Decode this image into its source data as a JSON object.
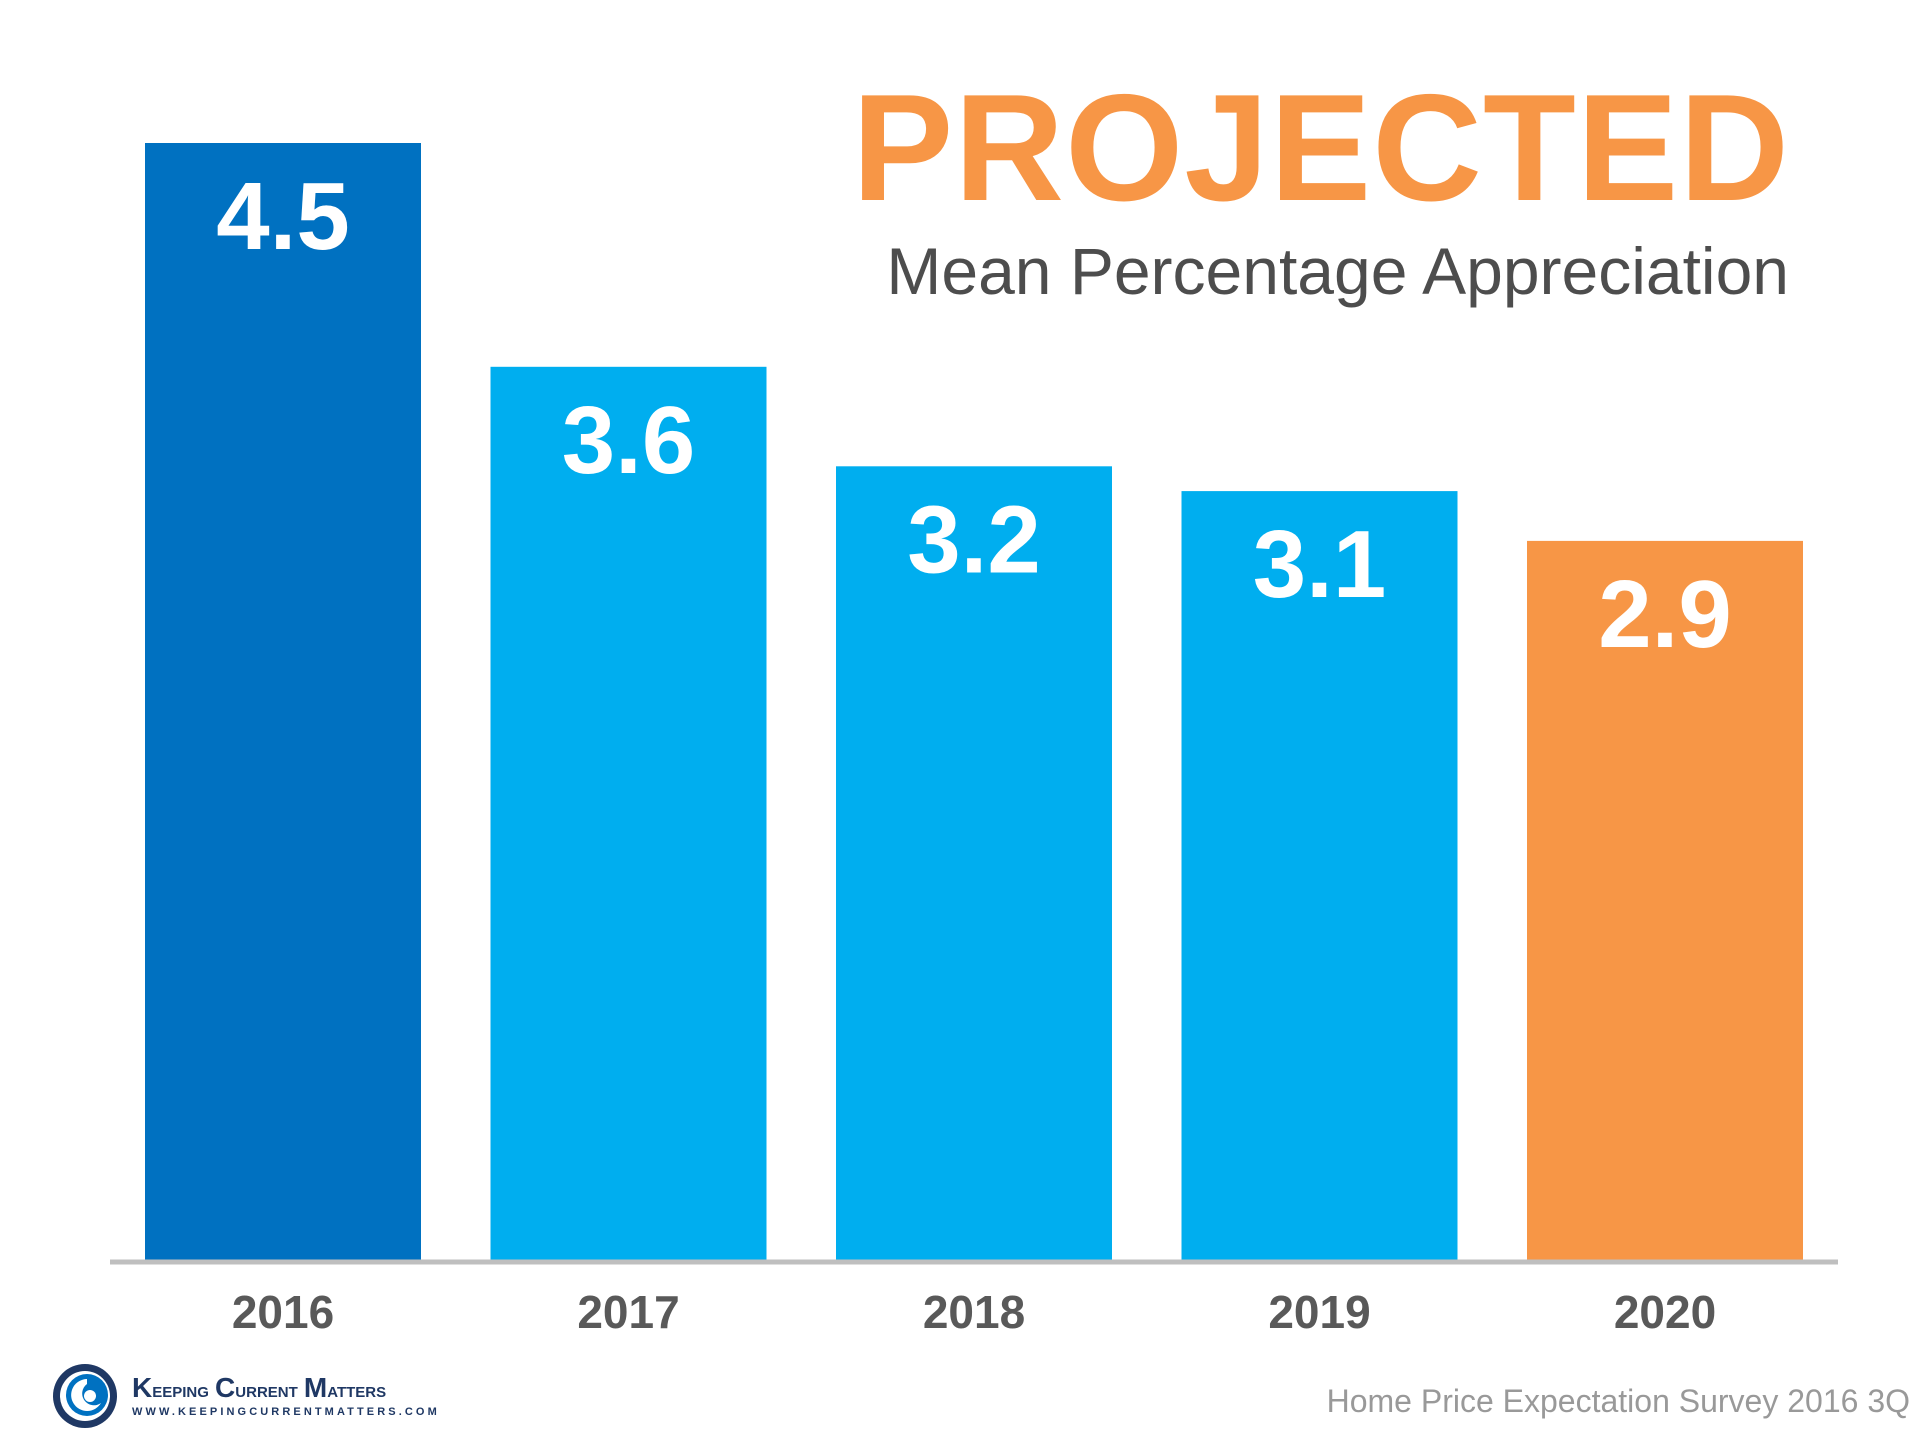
{
  "chart_data": {
    "type": "bar",
    "title": "PROJECTED",
    "subtitle": "Mean Percentage Appreciation",
    "categories": [
      "2016",
      "2017",
      "2018",
      "2019",
      "2020"
    ],
    "values": [
      4.5,
      3.6,
      3.2,
      3.1,
      2.9
    ],
    "value_labels": [
      "4.5",
      "3.6",
      "3.2",
      "3.1",
      "2.9"
    ],
    "bar_colors": [
      "#0071C1",
      "#00AEEF",
      "#00AEEF",
      "#00AEEF",
      "#F79646"
    ],
    "ylim": [
      0,
      4.5
    ],
    "xlabel": "",
    "ylabel": "",
    "grid": false,
    "legend": "none",
    "axis_line_color": "#BFBFBF",
    "tick_label_color": "#595959",
    "value_label_color": "#FFFFFF",
    "source": "Home Price Expectation Survey 2016 3Q"
  },
  "colors": {
    "title": "#F79646",
    "subtitle": "#4D4D4D",
    "source": "#999999",
    "logo_text": "#1F3864",
    "logo_blue": "#0071C1",
    "logo_dark": "#1F3864"
  },
  "branding": {
    "icon": "swirl-logo-icon",
    "name_first_initial": "K",
    "name_first_rest": "eeping",
    "name_second_initial": "C",
    "name_second_rest": "urrent",
    "name_third_initial": "M",
    "name_third_rest": "atters",
    "url": "WWW.KEEPINGCURRENTMATTERS.COM"
  }
}
